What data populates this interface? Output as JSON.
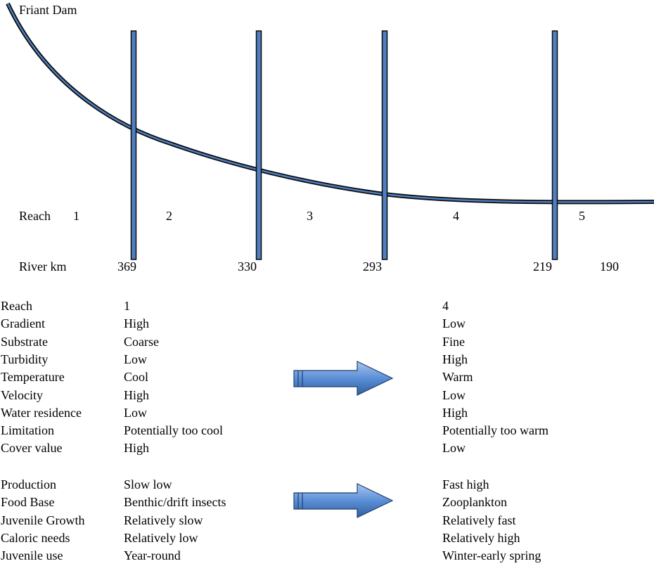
{
  "diagram": {
    "dam_label": "Friant Dam",
    "reach_label": "Reach",
    "reach_numbers": [
      "1",
      "2",
      "3",
      "4",
      "5"
    ],
    "river_km_label": "River km",
    "km_marks": [
      "369",
      "330",
      "293",
      "219"
    ],
    "km_end": "190",
    "colors": {
      "curve": "#4f7fc0",
      "bar": "#4f7fc0",
      "arrow": "#5b8fd6",
      "outline": "#0a0a0a"
    }
  },
  "comparison_physical": [
    {
      "label": "Reach",
      "reach1": "1",
      "reach4": "4"
    },
    {
      "label": "Gradient",
      "reach1": "High",
      "reach4": "Low"
    },
    {
      "label": "Substrate",
      "reach1": "Coarse",
      "reach4": "Fine"
    },
    {
      "label": "Turbidity",
      "reach1": "Low",
      "reach4": "High"
    },
    {
      "label": "Temperature",
      "reach1": "Cool",
      "reach4": "Warm"
    },
    {
      "label": "Velocity",
      "reach1": "High",
      "reach4": "Low"
    },
    {
      "label": "Water residence",
      "reach1": "Low",
      "reach4": "High"
    },
    {
      "label": "Limitation",
      "reach1": "Potentially too cool",
      "reach4": "Potentially too warm"
    },
    {
      "label": "Cover value",
      "reach1": "High",
      "reach4": "Low"
    }
  ],
  "comparison_biological": [
    {
      "label": "Production",
      "reach1": "Slow low",
      "reach4": "Fast high"
    },
    {
      "label": "Food Base",
      "reach1": "Benthic/drift insects",
      "reach4": "Zooplankton"
    },
    {
      "label": "Juvenile Growth",
      "reach1": "Relatively slow",
      "reach4": "Relatively fast"
    },
    {
      "label": "Caloric needs",
      "reach1": "Relatively low",
      "reach4": "Relatively high"
    },
    {
      "label": "Juvenile use",
      "reach1": "Year-round",
      "reach4": "Winter-early spring"
    }
  ]
}
